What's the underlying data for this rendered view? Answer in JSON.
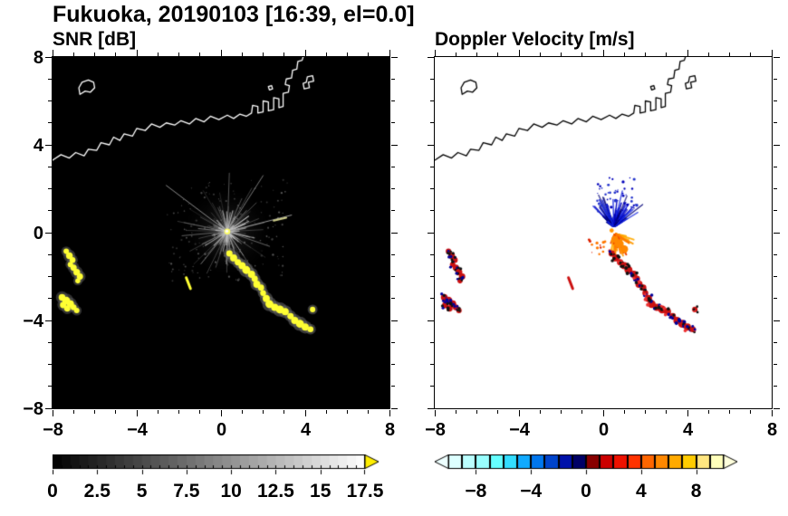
{
  "title": "Fukuoka, 20190103 [16:39, el=0.0]",
  "panels": {
    "snr": {
      "title": "SNR [dB]"
    },
    "velocity": {
      "title": "Doppler Velocity [m/s]"
    }
  },
  "axes": {
    "xlim": [
      -8,
      8
    ],
    "ylim": [
      -8,
      8
    ],
    "major_ticks": [
      -8,
      -4,
      0,
      4,
      8
    ],
    "tick_labels": [
      "−8",
      "−4",
      "0",
      "4",
      "8"
    ],
    "minor_tick_step": 1
  },
  "colorbars": {
    "snr": {
      "range": [
        0,
        17.5
      ],
      "segment_step": 0.5,
      "ticks": [
        0,
        2.5,
        5,
        7.5,
        10,
        12.5,
        15,
        17.5
      ],
      "tick_labels": [
        "0",
        "2.5",
        "5",
        "7.5",
        "10",
        "12.5",
        "15",
        "17.5"
      ],
      "colormap": "grayscale",
      "start_color": "#000000",
      "end_color": "#ffffff",
      "over_arrow_color": "#ffee00"
    },
    "velocity": {
      "range": [
        -10,
        10
      ],
      "ticks": [
        -8,
        -4,
        0,
        4,
        8
      ],
      "tick_labels": [
        "−8",
        "−4",
        "0",
        "4",
        "8"
      ],
      "segment_colors": [
        "#ddffff",
        "#bbffff",
        "#99ffff",
        "#66ffff",
        "#33ddff",
        "#11aaff",
        "#0077ee",
        "#0044cc",
        "#0011aa",
        "#000066",
        "#880000",
        "#cc0000",
        "#ee1100",
        "#ff3300",
        "#ff6600",
        "#ff8800",
        "#ffaa00",
        "#ffcc00",
        "#ffe680",
        "#ffffbb"
      ],
      "under_arrow_color": "#eeffff",
      "over_arrow_color": "#ffffdd"
    }
  },
  "chart_data": {
    "type": "heatmap",
    "description": "Dual-panel radar PPI display, Fukuoka, 2019-01-03 16:39, elevation 0.0 deg. Left panel: SNR in dB (grayscale 0-17.5, yellow = over-range strong echoes). Right panel: Doppler velocity in m/s (cyan-blue negative, red-yellow positive, range -10..10). Axes are distance from radar, -8..8. Hakata Bay coastline drawn across the upper part. Strong echo band runs southeast from near the radar; two more echo clusters to the west-southwest; ground-clutter starburst at the radar location.",
    "xlim": [
      -8,
      8
    ],
    "ylim": [
      -8,
      8
    ],
    "coastlines": [
      [
        [
          -8,
          3.3
        ],
        [
          -7.6,
          3.55
        ],
        [
          -7.2,
          3.4
        ],
        [
          -6.9,
          3.65
        ],
        [
          -6.5,
          3.5
        ],
        [
          -6.3,
          3.8
        ],
        [
          -5.9,
          3.75
        ],
        [
          -5.7,
          4.1
        ],
        [
          -5.3,
          4.0
        ],
        [
          -5.1,
          4.35
        ],
        [
          -4.8,
          4.2
        ],
        [
          -4.6,
          4.5
        ],
        [
          -4.2,
          4.4
        ],
        [
          -4.0,
          4.75
        ],
        [
          -3.6,
          4.65
        ],
        [
          -3.3,
          4.95
        ],
        [
          -2.9,
          4.8
        ],
        [
          -2.6,
          5.0
        ],
        [
          -2.2,
          4.9
        ],
        [
          -1.9,
          5.1
        ],
        [
          -1.5,
          4.95
        ],
        [
          -1.2,
          5.2
        ],
        [
          -0.8,
          5.05
        ],
        [
          -0.5,
          5.3
        ],
        [
          -0.1,
          5.15
        ],
        [
          0.3,
          5.35
        ],
        [
          0.6,
          5.2
        ],
        [
          0.9,
          5.4
        ],
        [
          1.2,
          5.3
        ],
        [
          1.45,
          5.45
        ],
        [
          1.5,
          5.8
        ],
        [
          1.75,
          5.75
        ],
        [
          1.75,
          5.45
        ],
        [
          2.0,
          5.5
        ],
        [
          2.0,
          6.0
        ],
        [
          2.25,
          5.95
        ],
        [
          2.25,
          5.55
        ],
        [
          2.5,
          5.6
        ],
        [
          2.5,
          6.15
        ],
        [
          2.75,
          6.1
        ],
        [
          2.75,
          5.7
        ],
        [
          2.95,
          5.75
        ],
        [
          2.95,
          6.35
        ],
        [
          3.2,
          6.4
        ],
        [
          3.25,
          6.7
        ],
        [
          3.05,
          6.75
        ],
        [
          3.1,
          7.0
        ],
        [
          3.35,
          7.05
        ],
        [
          3.4,
          7.4
        ],
        [
          3.6,
          7.45
        ],
        [
          3.65,
          7.8
        ],
        [
          3.85,
          7.85
        ],
        [
          3.9,
          8.0
        ]
      ],
      [
        [
          -6.7,
          6.3
        ],
        [
          -6.45,
          6.45
        ],
        [
          -6.2,
          6.4
        ],
        [
          -6.0,
          6.6
        ],
        [
          -6.05,
          6.85
        ],
        [
          -6.3,
          6.95
        ],
        [
          -6.6,
          6.85
        ],
        [
          -6.75,
          6.6
        ],
        [
          -6.7,
          6.3
        ]
      ],
      [
        [
          3.95,
          6.55
        ],
        [
          4.2,
          6.6
        ],
        [
          4.15,
          6.85
        ],
        [
          4.4,
          6.9
        ],
        [
          4.35,
          7.15
        ],
        [
          4.1,
          7.1
        ],
        [
          4.05,
          6.85
        ],
        [
          3.9,
          6.8
        ],
        [
          3.95,
          6.55
        ]
      ],
      [
        [
          2.3,
          6.5
        ],
        [
          2.45,
          6.55
        ],
        [
          2.4,
          6.7
        ],
        [
          2.25,
          6.65
        ],
        [
          2.3,
          6.5
        ]
      ]
    ],
    "echo_band": [
      [
        0.4,
        -0.95,
        0.15
      ],
      [
        0.6,
        -1.15,
        0.17
      ],
      [
        0.8,
        -1.35,
        0.15
      ],
      [
        1.0,
        -1.5,
        0.17
      ],
      [
        1.2,
        -1.7,
        0.19
      ],
      [
        1.45,
        -1.9,
        0.17
      ],
      [
        1.6,
        -2.1,
        0.15
      ],
      [
        1.7,
        -2.35,
        0.17
      ],
      [
        1.9,
        -2.5,
        0.15
      ],
      [
        2.0,
        -2.75,
        0.14
      ],
      [
        2.15,
        -3.0,
        0.17
      ],
      [
        2.3,
        -3.25,
        0.19
      ],
      [
        2.55,
        -3.4,
        0.17
      ],
      [
        2.8,
        -3.5,
        0.19
      ],
      [
        3.05,
        -3.6,
        0.17
      ],
      [
        3.3,
        -3.8,
        0.15
      ],
      [
        3.5,
        -4.0,
        0.17
      ],
      [
        3.75,
        -4.15,
        0.19
      ],
      [
        4.0,
        -4.3,
        0.17
      ],
      [
        4.25,
        -4.4,
        0.14
      ],
      [
        4.35,
        -3.5,
        0.13
      ]
    ],
    "west_echo_a": [
      [
        -7.35,
        -0.85,
        0.13
      ],
      [
        -7.2,
        -1.05,
        0.16
      ],
      [
        -7.05,
        -1.25,
        0.14
      ],
      [
        -7.15,
        -1.45,
        0.13
      ],
      [
        -7.0,
        -1.6,
        0.15
      ],
      [
        -6.85,
        -1.8,
        0.16
      ],
      [
        -6.7,
        -2.0,
        0.15
      ],
      [
        -6.8,
        -2.2,
        0.12
      ]
    ],
    "west_echo_b": [
      [
        -7.55,
        -2.95,
        0.16
      ],
      [
        -7.35,
        -3.1,
        0.19
      ],
      [
        -7.5,
        -3.3,
        0.15
      ],
      [
        -7.15,
        -3.25,
        0.17
      ],
      [
        -7.3,
        -3.45,
        0.15
      ],
      [
        -7.0,
        -3.4,
        0.14
      ],
      [
        -6.85,
        -3.55,
        0.13
      ]
    ],
    "snr": {
      "background": "#000000",
      "coast_color": "#ffffff",
      "features": [
        {
          "kind": "haze",
          "cx": 0.3,
          "cy": 0.05,
          "r": 2.3,
          "color": "#888888",
          "alpha": 0.28,
          "seed": 1
        },
        {
          "kind": "speckle",
          "box": [
            -2.6,
            -2.2,
            3.2,
            2.4
          ],
          "count": 170,
          "r": 0.035,
          "colors": [
            "#3a3a3a",
            "#555555",
            "#6a6a6a"
          ],
          "alpha": 0.8,
          "seed": 41
        },
        {
          "kind": "spokes",
          "cx": 0.3,
          "cy": 0.05,
          "angle_deg": [
            0,
            360
          ],
          "count": 120,
          "min_len": 0.3,
          "max_len": 3.1,
          "width": 1,
          "colors": [
            "#8a8a8a",
            "#a0a0a0",
            "#6f6f6f"
          ],
          "alpha_min": 0.2,
          "alpha_max": 0.75,
          "seed": 11
        },
        {
          "kind": "spokes",
          "cx": 0.3,
          "cy": 0.05,
          "angle_deg": [
            0,
            360
          ],
          "count": 60,
          "min_len": 0.15,
          "max_len": 1.4,
          "width": 1.2,
          "colors": [
            "#c8c8c8",
            "#b0b0b0"
          ],
          "alpha_min": 0.4,
          "alpha_max": 0.9,
          "seed": 5
        },
        {
          "kind": "line",
          "points": [
            [
              0.3,
              0.05
            ],
            [
              3.35,
              0.8
            ]
          ],
          "color": "#9a9a9a",
          "width": 1
        },
        {
          "kind": "line",
          "points": [
            [
              0.3,
              0.05
            ],
            [
              -2.6,
              2.15
            ]
          ],
          "color": "#8a8a8a",
          "width": 1
        },
        {
          "kind": "line",
          "points": [
            [
              0.3,
              0.05
            ],
            [
              2.0,
              2.6
            ]
          ],
          "color": "#777777",
          "width": 1
        },
        {
          "kind": "line",
          "points": [
            [
              2.5,
              0.55
            ],
            [
              3.1,
              0.68
            ]
          ],
          "color": "#cccc88",
          "width": 2
        },
        {
          "kind": "blobs",
          "points_ref": "echo_band",
          "color": "#ffff33",
          "halo": "#6a6a6a"
        },
        {
          "kind": "blobs",
          "points_ref": "west_echo_a",
          "color": "#ffff33",
          "halo": "#5a5a5a"
        },
        {
          "kind": "blobs",
          "points_ref": "west_echo_b",
          "color": "#ffff33",
          "halo": "#5a5a5a"
        },
        {
          "kind": "line",
          "points": [
            [
              -1.65,
              -2.05
            ],
            [
              -1.45,
              -2.55
            ]
          ],
          "color": "#ffff33",
          "width": 3
        },
        {
          "kind": "dot",
          "x": 0.3,
          "y": 0.05,
          "r": 0.14,
          "color": "#ffff66"
        },
        {
          "kind": "dot",
          "x": 0.28,
          "y": 0.07,
          "r": 0.07,
          "color": "#ffffff"
        }
      ]
    },
    "velocity": {
      "background": "#ffffff",
      "coast_color": "#000000",
      "features": [
        {
          "kind": "spokes",
          "cx": 0.5,
          "cy": 0.25,
          "angle_deg": [
            30,
            150
          ],
          "count": 110,
          "min_len": 0.2,
          "max_len": 2.0,
          "width": 1.4,
          "colors": [
            "#0000bb",
            "#1122dd",
            "#000077"
          ],
          "alpha_min": 0.7,
          "alpha_max": 1,
          "seed": 9
        },
        {
          "kind": "speckle",
          "box": [
            -0.3,
            0.9,
            1.7,
            2.5
          ],
          "count": 45,
          "r": 0.05,
          "colors": [
            "#0000bb",
            "#2233cc"
          ],
          "alpha": 1,
          "seed": 31
        },
        {
          "kind": "spokes",
          "cx": 0.55,
          "cy": -0.05,
          "angle_deg": [
            -115,
            -10
          ],
          "count": 90,
          "min_len": 0.1,
          "max_len": 1.2,
          "width": 2,
          "colors": [
            "#ff7700",
            "#ff9900",
            "#ee4400",
            "#ffaa00"
          ],
          "alpha_min": 0.85,
          "alpha_max": 1,
          "seed": 21
        },
        {
          "kind": "blobs",
          "points": [
            [
              0.75,
              -0.5,
              0.2
            ],
            [
              1.0,
              -0.75,
              0.18
            ],
            [
              0.55,
              -0.3,
              0.16
            ]
          ],
          "color": "#ff8800"
        },
        {
          "kind": "speckle",
          "box": [
            -0.8,
            -1.0,
            0.2,
            -0.3
          ],
          "count": 14,
          "r": 0.05,
          "colors": [
            "#dd2200",
            "#ff7700"
          ],
          "alpha": 1,
          "seed": 33
        },
        {
          "kind": "mottled",
          "points_ref": "echo_band",
          "base": "#cc1111",
          "speck_colors": [
            "#000099",
            "#111111",
            "#ee3333"
          ],
          "seed": 17
        },
        {
          "kind": "mottled",
          "points_ref": "west_echo_a",
          "base": "#cc1111",
          "speck_colors": [
            "#000099",
            "#111111"
          ],
          "seed": 19
        },
        {
          "kind": "mottled",
          "points_ref": "west_echo_b",
          "base": "#cc1111",
          "speck_colors": [
            "#000099",
            "#111111"
          ],
          "seed": 23
        },
        {
          "kind": "line",
          "points": [
            [
              -1.65,
              -2.05
            ],
            [
              -1.45,
              -2.55
            ]
          ],
          "color": "#cc1111",
          "width": 3
        },
        {
          "kind": "dot",
          "x": 0.4,
          "y": 0.1,
          "r": 0.1,
          "color": "#ff9900"
        }
      ]
    }
  }
}
